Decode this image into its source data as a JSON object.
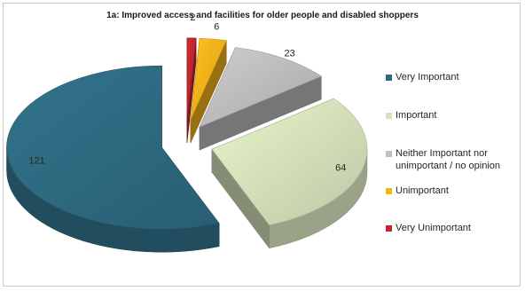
{
  "chart_data": {
    "type": "pie",
    "style": "3d-exploded",
    "title": "1a: Improved access and facilities for older people and disabled shoppers",
    "legend_position": "right",
    "slices": [
      {
        "name": "Very Important",
        "value": 121,
        "color": "#2e6b82"
      },
      {
        "name": "Important",
        "value": 64,
        "color": "#d6e3bc"
      },
      {
        "name": "Neither Important nor unimportant / no opinion",
        "value": 23,
        "color": "#bfbfbf"
      },
      {
        "name": "Unimportant",
        "value": 6,
        "color": "#f5b41a"
      },
      {
        "name": "Very Unimportant",
        "value": 2,
        "color": "#c0272d"
      }
    ]
  }
}
